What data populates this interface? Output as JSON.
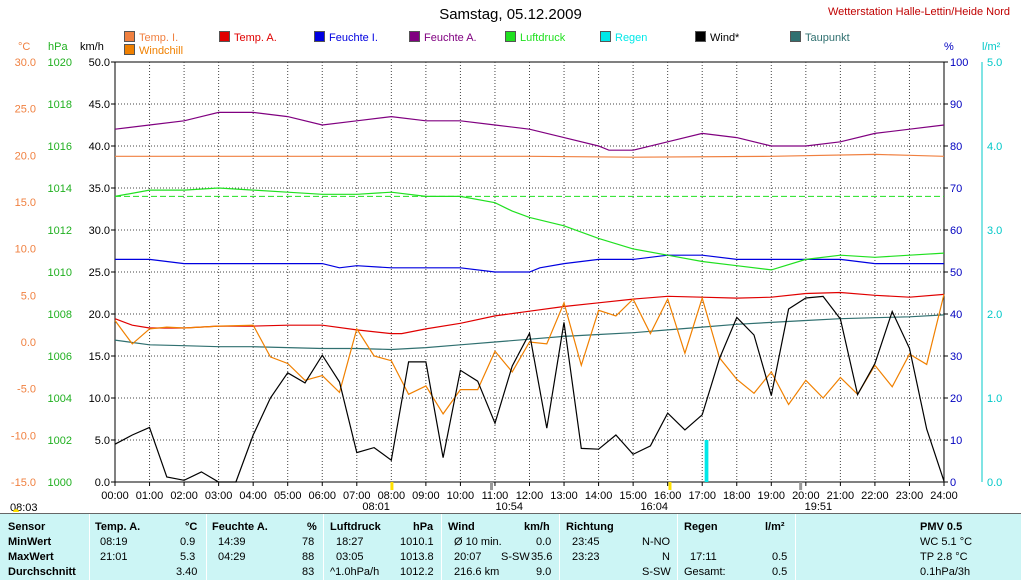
{
  "title": "Samstag, 05.12.2009",
  "station": "Wetterstation Halle-Lettin/Heide Nord",
  "legend": [
    {
      "label": "Temp. I.",
      "color": "#f08040"
    },
    {
      "label": "Temp. A.",
      "color": "#e00000"
    },
    {
      "label": "Feuchte I.",
      "color": "#0000e0"
    },
    {
      "label": "Feuchte A.",
      "color": "#800080"
    },
    {
      "label": "Luftdruck",
      "color": "#20e020"
    },
    {
      "label": "Regen",
      "color": "#00e8e8"
    },
    {
      "label": "Wind*",
      "color": "#000000"
    },
    {
      "label": "Taupunkt",
      "color": "#307070"
    },
    {
      "label": "Windchill",
      "color": "#f08000"
    }
  ],
  "axis_units": {
    "celsius": "°C",
    "hpa": "hPa",
    "kmh": "km/h",
    "percent": "%",
    "rain": "l/m²"
  },
  "axis_colors": {
    "celsius": "#f08040",
    "hpa": "#20b020",
    "kmh": "#000000",
    "percent": "#0000c0",
    "rain": "#00c8c8"
  },
  "ticks": {
    "celsius": [
      "30.0",
      "25.0",
      "20.0",
      "15.0",
      "10.0",
      "5.0",
      "0.0",
      "-5.0",
      "-10.0",
      "-15.0"
    ],
    "hpa": [
      "1020",
      "1018",
      "1016",
      "1014",
      "1012",
      "1010",
      "1008",
      "1006",
      "1004",
      "1002",
      "1000"
    ],
    "kmh": [
      "50.0",
      "45.0",
      "40.0",
      "35.0",
      "30.0",
      "25.0",
      "20.0",
      "15.0",
      "10.0",
      "5.0",
      "0.0"
    ],
    "percent": [
      "100",
      "90",
      "80",
      "70",
      "60",
      "50",
      "40",
      "30",
      "20",
      "10",
      "0"
    ],
    "rain": [
      "5.0",
      "4.0",
      "3.0",
      "2.0",
      "1.0",
      "0.0"
    ],
    "time": [
      "00:00",
      "01:00",
      "02:00",
      "03:00",
      "04:00",
      "05:00",
      "06:00",
      "07:00",
      "08:00",
      "09:00",
      "10:00",
      "11:00",
      "12:00",
      "13:00",
      "14:00",
      "15:00",
      "16:00",
      "17:00",
      "18:00",
      "19:00",
      "20:00",
      "21:00",
      "22:00",
      "23:00",
      "24:00"
    ]
  },
  "markers": {
    "sunrise": "08:03",
    "t0801": "08:01",
    "t1054": "10:54",
    "t1604": "16:04",
    "t1951": "19:51"
  },
  "chart_data": {
    "type": "line",
    "x_unit": "hours",
    "xlim": [
      0,
      24
    ],
    "ylim_kmh": [
      0,
      50
    ],
    "ylim_celsius": [
      -15,
      30
    ],
    "ylim_hpa": [
      1000,
      1020
    ],
    "ylim_percent": [
      0,
      100
    ],
    "ylim_rain": [
      0,
      5
    ],
    "grid": true,
    "series": [
      {
        "name": "Temp. I.",
        "axis": "celsius",
        "color": "#f08040",
        "x": [
          0,
          6,
          12,
          15,
          19,
          22,
          23,
          24
        ],
        "y": [
          19.9,
          19.9,
          19.9,
          19.8,
          19.9,
          20.1,
          20.0,
          19.9
        ]
      },
      {
        "name": "Temp. A.",
        "axis": "celsius",
        "color": "#e00000",
        "x": [
          0,
          0.5,
          1,
          2,
          3,
          4,
          5,
          6,
          7,
          8,
          8.3,
          9,
          10,
          11,
          12,
          13,
          14,
          15,
          16,
          17,
          18,
          19,
          20,
          21,
          22,
          23,
          24
        ],
        "y": [
          2.5,
          1.8,
          1.5,
          1.5,
          1.7,
          1.7,
          1.8,
          1.8,
          1.3,
          0.9,
          0.9,
          1.4,
          2.0,
          2.8,
          3.3,
          3.8,
          4.2,
          4.6,
          4.9,
          4.8,
          4.7,
          4.8,
          5.2,
          5.3,
          5.0,
          4.8,
          5.1
        ]
      },
      {
        "name": "Feuchte I.",
        "axis": "percent",
        "color": "#0000e0",
        "x": [
          0,
          1,
          1.5,
          2,
          5,
          6,
          6.5,
          7,
          8,
          10,
          11,
          12,
          12.3,
          13,
          14,
          15,
          16,
          17,
          18,
          19,
          20,
          21,
          22,
          23,
          24
        ],
        "y": [
          53,
          53,
          52.5,
          52,
          52,
          52,
          51,
          51.5,
          51,
          51,
          50,
          50,
          51,
          52,
          53,
          53,
          54,
          54,
          53,
          53,
          53,
          53,
          52,
          52,
          52
        ]
      },
      {
        "name": "Feuchte A.",
        "axis": "percent",
        "color": "#800080",
        "x": [
          0,
          1,
          2,
          2.5,
          3,
          4,
          5,
          6,
          7,
          8,
          9,
          10,
          11,
          12,
          13,
          14,
          14.3,
          15,
          16,
          17,
          18,
          19,
          20,
          21,
          22,
          23,
          24
        ],
        "y": [
          84,
          85,
          86,
          87,
          88,
          88,
          87,
          85,
          86,
          87,
          86,
          86,
          85,
          84,
          82,
          80,
          79,
          79,
          81,
          83,
          82,
          80,
          80,
          81,
          83,
          84,
          85
        ]
      },
      {
        "name": "Luftdruck",
        "axis": "hpa",
        "color": "#20e020",
        "x": [
          0,
          1,
          2,
          3,
          4,
          5,
          6,
          7,
          8,
          9,
          10,
          11,
          11.5,
          12,
          13,
          14,
          15,
          16,
          17,
          18,
          19,
          20,
          21,
          22,
          23,
          24
        ],
        "y": [
          1013.6,
          1013.9,
          1013.9,
          1014.0,
          1013.9,
          1013.8,
          1013.7,
          1013.7,
          1013.8,
          1013.6,
          1013.6,
          1013.3,
          1012.9,
          1012.6,
          1012.2,
          1011.6,
          1011.1,
          1010.8,
          1010.5,
          1010.3,
          1010.1,
          1010.6,
          1010.8,
          1010.7,
          1010.8,
          1010.9
        ]
      },
      {
        "name": "Taupunkt",
        "axis": "celsius",
        "color": "#307070",
        "x": [
          0,
          1,
          2,
          3,
          4,
          5,
          6,
          7,
          8,
          9,
          10,
          11,
          12,
          13,
          14,
          15,
          16,
          17,
          18,
          19,
          20,
          21,
          22,
          23,
          24
        ],
        "y": [
          0.2,
          -0.3,
          -0.4,
          -0.5,
          -0.5,
          -0.6,
          -0.7,
          -0.7,
          -0.8,
          -0.6,
          -0.3,
          0.0,
          0.3,
          0.6,
          0.8,
          1.0,
          1.3,
          1.6,
          1.9,
          2.1,
          2.3,
          2.5,
          2.6,
          2.7,
          2.9
        ]
      },
      {
        "name": "Windchill",
        "axis": "celsius",
        "color": "#f08000",
        "x": [
          0,
          0.5,
          1,
          1.5,
          2,
          3,
          4,
          4.5,
          5,
          5.5,
          6,
          6.5,
          7,
          7.5,
          8,
          8.5,
          9,
          9.5,
          10,
          10.5,
          11,
          11.5,
          12,
          12.5,
          13,
          13.5,
          14,
          14.5,
          15,
          15.5,
          16,
          16.5,
          17,
          17.5,
          18,
          18.5,
          19,
          19.5,
          20,
          20.5,
          21,
          21.5,
          22,
          22.5,
          23,
          23.5,
          24
        ],
        "y": [
          2.3,
          -0.2,
          1.4,
          1.6,
          1.5,
          1.7,
          1.8,
          -1.6,
          -2.3,
          -4.1,
          -3.6,
          -5.4,
          1.4,
          -1.5,
          -2.0,
          -5.6,
          -4.7,
          -7.7,
          -5.1,
          -5.1,
          -1.0,
          -3.2,
          0.0,
          -0.2,
          4.2,
          -2.5,
          3.4,
          2.8,
          4.6,
          0.9,
          4.6,
          -1.2,
          4.7,
          -1.7,
          -4.0,
          -5.5,
          -3.2,
          -6.7,
          -4.1,
          -6.0,
          -3.8,
          -5.6,
          -2.5,
          -4.8,
          -1.3,
          -2.4,
          5.1
        ]
      },
      {
        "name": "Wind*",
        "axis": "kmh",
        "color": "#000000",
        "x": [
          0,
          0.5,
          1,
          1.5,
          2,
          2.5,
          3,
          3.5,
          4,
          4.5,
          5,
          5.5,
          6,
          6.5,
          7,
          7.5,
          8,
          8.5,
          9,
          9.5,
          10,
          10.5,
          11,
          11.5,
          12,
          12.5,
          13,
          13.5,
          14,
          14.5,
          15,
          15.5,
          16,
          16.5,
          17,
          17.5,
          18,
          18.5,
          19,
          19.5,
          20,
          20.5,
          21,
          21.5,
          22,
          22.5,
          23,
          23.5,
          24
        ],
        "y": [
          4.5,
          5.6,
          6.5,
          0.6,
          0.2,
          1.2,
          0.0,
          0.0,
          5.6,
          10.0,
          13.0,
          11.8,
          15.1,
          11.9,
          3.5,
          4.1,
          2.6,
          14.3,
          14.3,
          2.9,
          13.3,
          12.0,
          7.0,
          13.8,
          17.7,
          6.4,
          19.0,
          4.0,
          3.9,
          5.6,
          3.3,
          4.3,
          8.2,
          6.2,
          8.0,
          14.7,
          19.6,
          17.5,
          10.3,
          20.6,
          21.9,
          22.1,
          19.4,
          10.4,
          14.1,
          20.3,
          15.9,
          6.3,
          0.1
        ]
      }
    ],
    "rain_bars": {
      "name": "Regen",
      "axis": "rain",
      "color": "#00e8e8",
      "x": [
        17.1,
        17.15
      ],
      "y": [
        0.5,
        0.5
      ]
    }
  },
  "table": {
    "row_labels": [
      "Sensor",
      "MinWert",
      "MaxWert",
      "Durchschnitt"
    ],
    "temp": {
      "head": "Temp. A.",
      "unit": "°C",
      "min_t": "08:19",
      "min_v": "0.9",
      "max_t": "21:01",
      "max_v": "5.3",
      "avg": "3.40"
    },
    "feuchte": {
      "head": "Feuchte A.",
      "unit": "%",
      "min_t": "14:39",
      "min_v": "78",
      "max_t": "04:29",
      "max_v": "88",
      "avg": "83"
    },
    "druck": {
      "head": "Luftdruck",
      "unit": "hPa",
      "min_t": "18:27",
      "min_v": "1010.1",
      "max_t": "03:05",
      "max_v": "1013.8",
      "avg_l": "^1.0hPa/h",
      "avg": "1012.2"
    },
    "wind": {
      "head": "Wind",
      "unit": "km/h",
      "r1_l": "Ø 10 min.",
      "r1_v": "0.0",
      "r2_t": "20:07",
      "r2_d": "S-SW",
      "r2_v": "35.6",
      "r3_l": "216.6 km",
      "r3_v": "9.0"
    },
    "richtung": {
      "head": "Richtung",
      "r1_t": "23:45",
      "r1_v": "N-NO",
      "r2_t": "23:23",
      "r2_v": "N",
      "r3_v": "S-SW"
    },
    "regen": {
      "head": "Regen",
      "unit": "l/m²",
      "r2_t": "17:11",
      "r2_v": "0.5",
      "r3_l": "Gesamt:",
      "r3_v": "0.5"
    },
    "pmv": {
      "head": "PMV 0.5",
      "wc": "WC 5.1 °C",
      "tp": "TP 2.8 °C",
      "rate": "0.1hPa/3h"
    }
  }
}
